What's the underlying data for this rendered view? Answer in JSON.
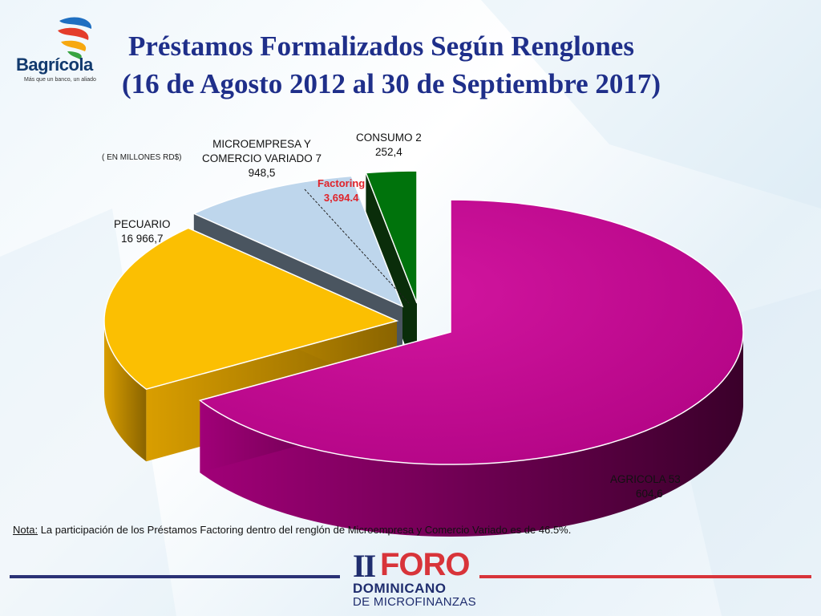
{
  "logo": {
    "name": "Bagrícola",
    "tagline": "Más que un banco, un aliado"
  },
  "title_line1": "Préstamos Formalizados Según Renglones",
  "title_line2": "(16 de Agosto 2012 al 30 de Septiembre 2017)",
  "units_note": "( EN MILLONES RD$)",
  "chart_data": {
    "type": "pie",
    "title": "Préstamos Formalizados Según Renglones (16 de Agosto 2012 al 30 de Septiembre 2017)",
    "units": "( EN MILLONES RD$)",
    "slices": [
      {
        "label": "AGRICOLA",
        "value": 53604.6,
        "display_value": "53 604,6",
        "color": "#c3058f"
      },
      {
        "label": "PECUARIO",
        "value": 16966.7,
        "display_value": "16 966,7",
        "color": "#fbbf02"
      },
      {
        "label": "MICROEMPRESA Y COMERCIO VARIADO",
        "value": 7948.5,
        "display_value": "7 948,5",
        "color": "#bed6ec"
      },
      {
        "label": "CONSUMO",
        "value": 2252.4,
        "display_value": "2 252,4",
        "color": "#00730c"
      }
    ],
    "annotation": {
      "label": "Factoring",
      "value": 3694.4,
      "display_value": "3,694.4",
      "color": "#e0232a"
    }
  },
  "labels": {
    "agricola_l1": "AGRICOLA   53",
    "agricola_l2": "604,6",
    "pecuario_l1": "PECUARIO",
    "pecuario_l2": "16 966,7",
    "micro_l1": "MICROEMPRESA Y",
    "micro_l2": "COMERCIO VARIADO  7",
    "micro_l3": "948,5",
    "consumo_l1": "CONSUMO   2",
    "consumo_l2": "252,4",
    "factoring_l1": "Factoring",
    "factoring_l2": "3,694.4"
  },
  "note": {
    "key": "Nota:",
    "text": " La participación de los Préstamos Factoring dentro del renglón de Microempresa y Comercio Variado  es de 46.5%."
  },
  "footer_logo": {
    "ii": "II",
    "foro": "FORO",
    "line2": "DOMINICANO",
    "line3": "DE MICROFINANZAS"
  }
}
